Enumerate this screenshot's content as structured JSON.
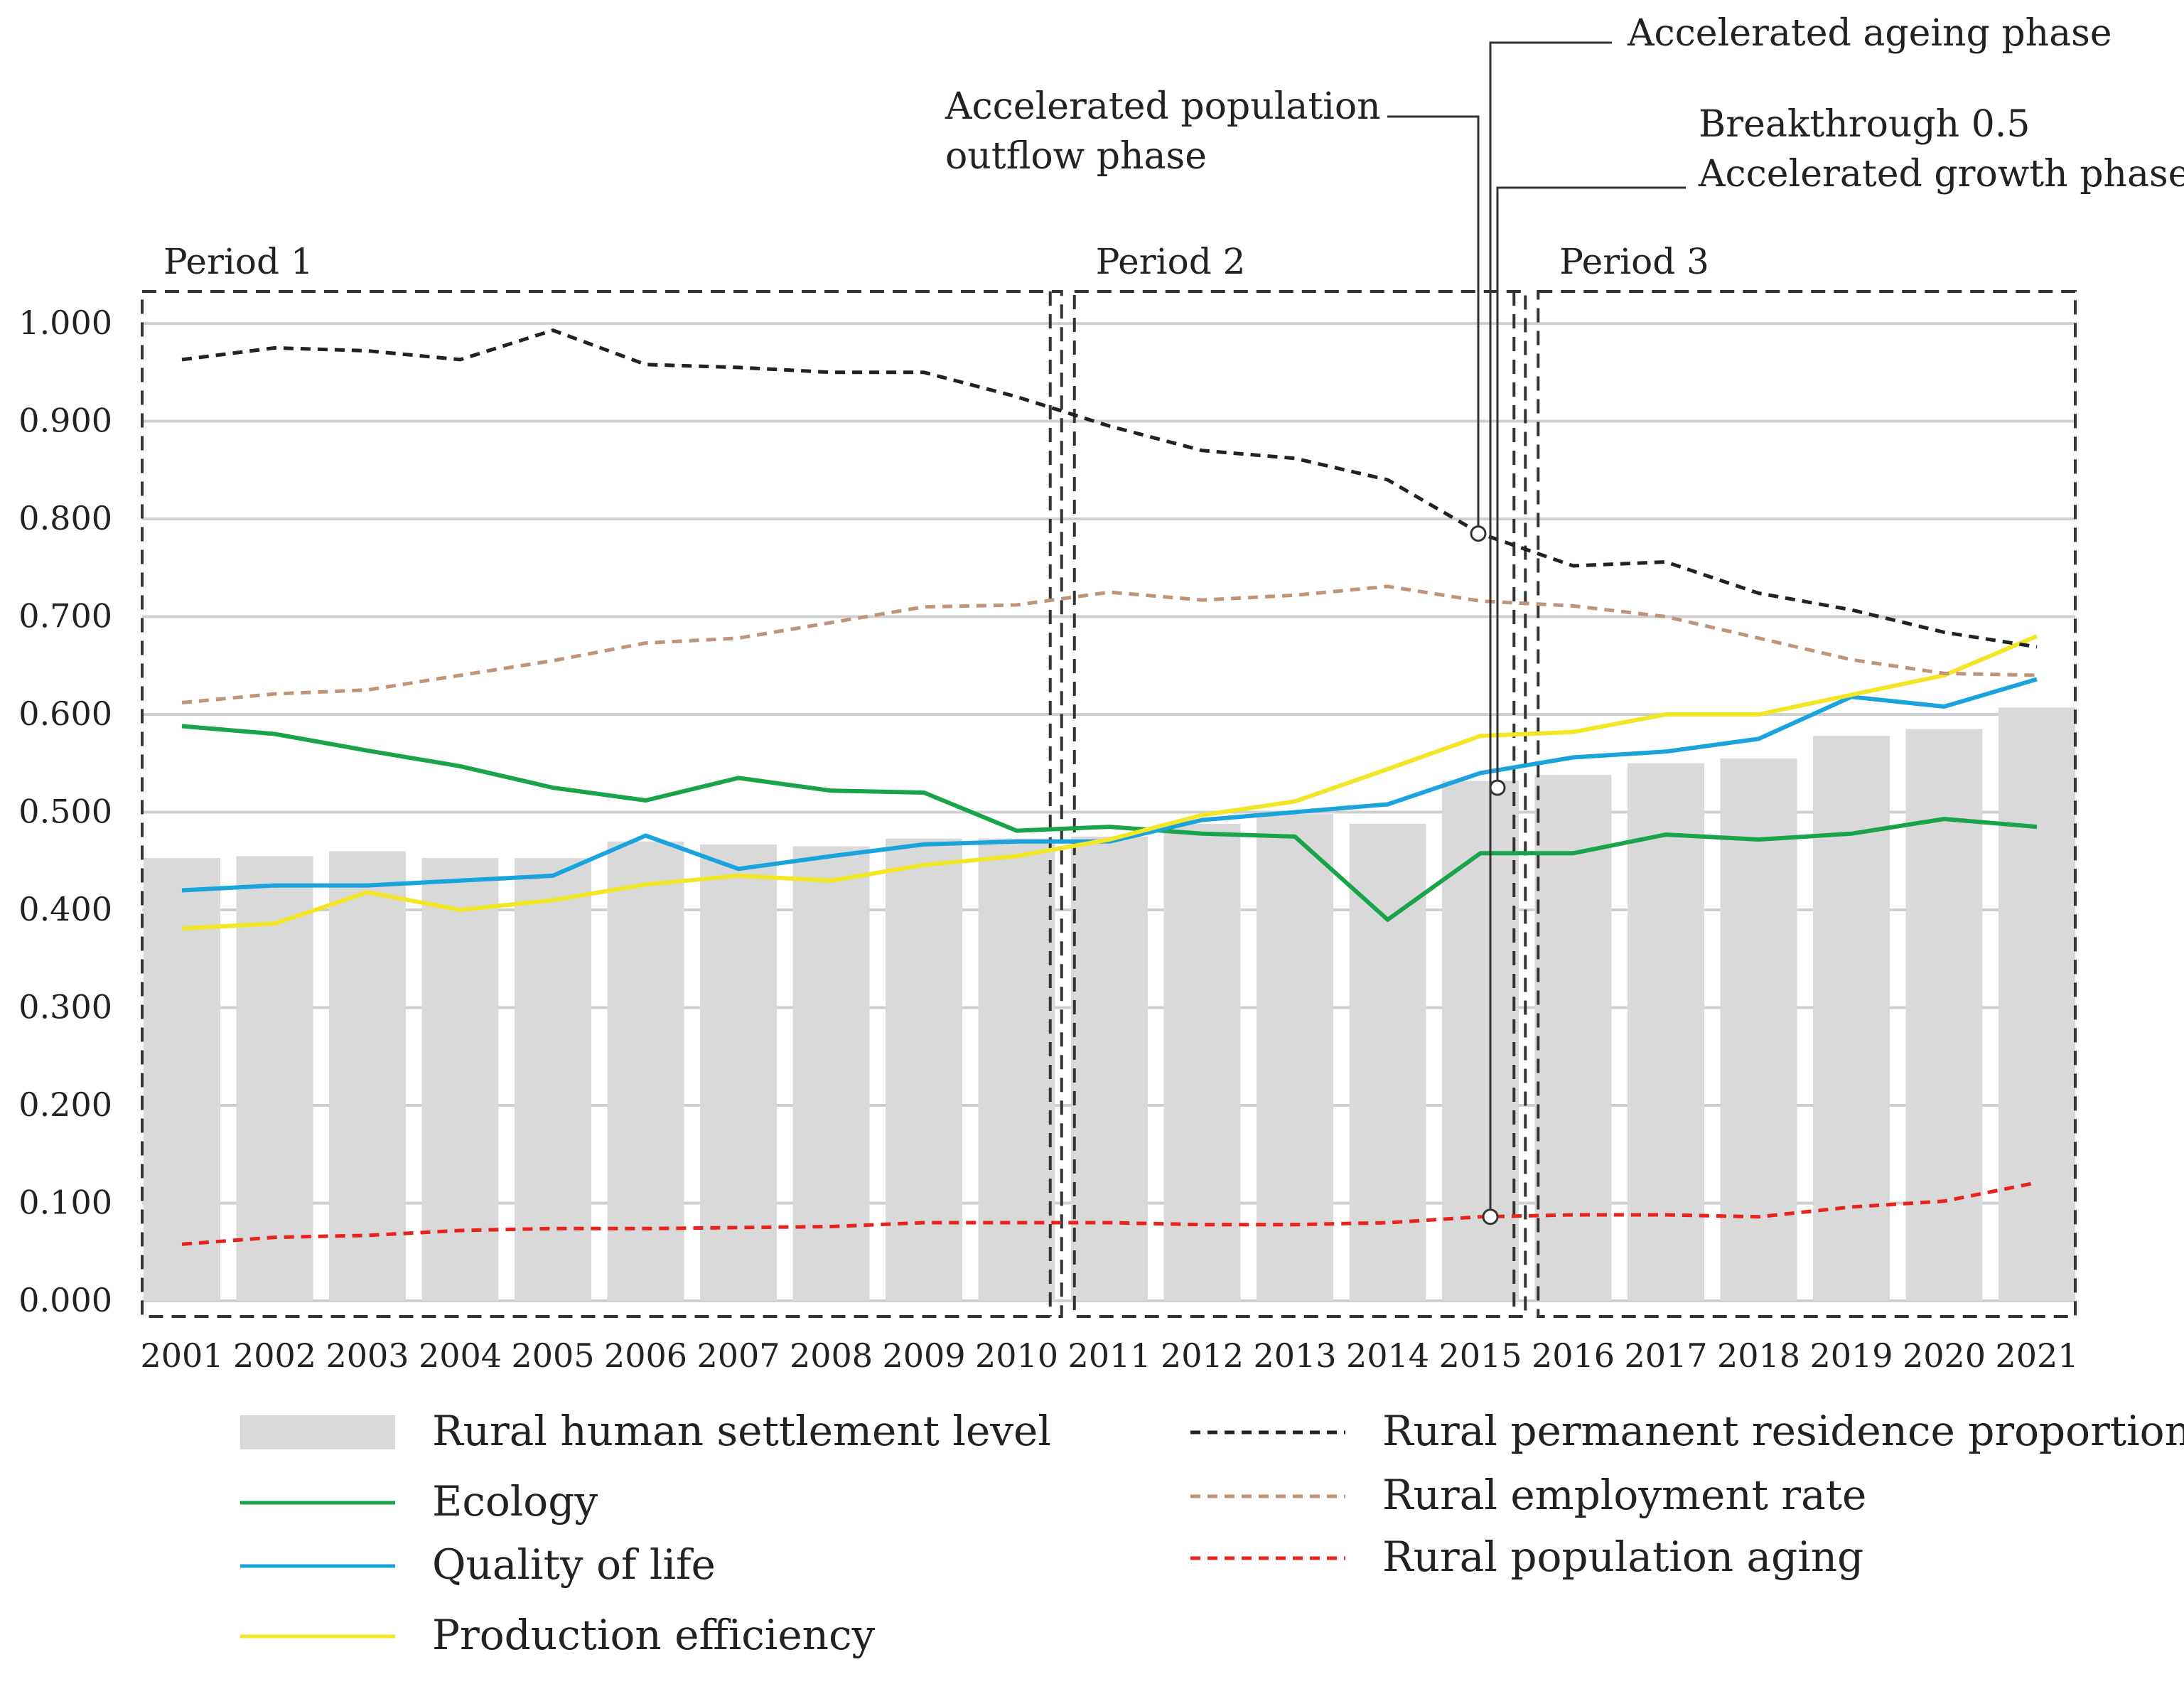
{
  "chart_data": {
    "type": "bar",
    "title": "",
    "xlabel": "",
    "ylabel": "",
    "ylim": [
      0,
      1
    ],
    "y_ticks": [
      "0.000",
      "0.100",
      "0.200",
      "0.300",
      "0.400",
      "0.500",
      "0.600",
      "0.700",
      "0.800",
      "0.900",
      "1.000"
    ],
    "categories": [
      "2001",
      "2002",
      "2003",
      "2004",
      "2005",
      "2006",
      "2007",
      "2008",
      "2009",
      "2010",
      "2011",
      "2012",
      "2013",
      "2014",
      "2015",
      "2016",
      "2017",
      "2018",
      "2019",
      "2020",
      "2021"
    ],
    "bars": {
      "name": "Rural human settlement level",
      "color": "#d9d9d9",
      "values": [
        0.453,
        0.455,
        0.46,
        0.453,
        0.453,
        0.47,
        0.467,
        0.465,
        0.473,
        0.473,
        0.475,
        0.488,
        0.498,
        0.488,
        0.532,
        0.538,
        0.55,
        0.555,
        0.578,
        0.585,
        0.607
      ]
    },
    "series": [
      {
        "name": "Ecology",
        "color": "#1aa44a",
        "style": "solid",
        "values": [
          0.588,
          0.58,
          0.563,
          0.547,
          0.525,
          0.512,
          0.535,
          0.522,
          0.52,
          0.481,
          0.485,
          0.478,
          0.475,
          0.39,
          0.458,
          0.458,
          0.477,
          0.472,
          0.478,
          0.493,
          0.485
        ]
      },
      {
        "name": "Quality of life",
        "color": "#1aa3dd",
        "style": "solid",
        "values": [
          0.42,
          0.425,
          0.425,
          0.43,
          0.435,
          0.476,
          0.442,
          0.455,
          0.467,
          0.47,
          0.47,
          0.492,
          0.5,
          0.508,
          0.54,
          0.556,
          0.562,
          0.575,
          0.618,
          0.608,
          0.636
        ]
      },
      {
        "name": "Production efficiency",
        "color": "#f2e627",
        "style": "solid",
        "values": [
          0.381,
          0.386,
          0.418,
          0.4,
          0.41,
          0.426,
          0.435,
          0.43,
          0.446,
          0.455,
          0.472,
          0.497,
          0.511,
          0.544,
          0.578,
          0.582,
          0.6,
          0.6,
          0.62,
          0.64,
          0.68
        ]
      },
      {
        "name": "Rural permanent residence proportion",
        "color": "#222222",
        "style": "dashed",
        "values": [
          0.963,
          0.975,
          0.972,
          0.963,
          0.993,
          0.958,
          0.955,
          0.95,
          0.95,
          0.925,
          0.895,
          0.87,
          0.862,
          0.84,
          0.785,
          0.752,
          0.756,
          0.724,
          0.707,
          0.684,
          0.669
        ]
      },
      {
        "name": "Rural employment rate",
        "color": "#c09478",
        "style": "dashed",
        "values": [
          0.612,
          0.621,
          0.625,
          0.64,
          0.655,
          0.673,
          0.678,
          0.694,
          0.71,
          0.712,
          0.725,
          0.717,
          0.722,
          0.731,
          0.716,
          0.711,
          0.7,
          0.678,
          0.656,
          0.642,
          0.64
        ]
      },
      {
        "name": "Rural population aging",
        "color": "#e8231e",
        "style": "dashed",
        "values": [
          0.058,
          0.065,
          0.067,
          0.072,
          0.074,
          0.074,
          0.075,
          0.076,
          0.08,
          0.08,
          0.08,
          0.078,
          0.078,
          0.08,
          0.086,
          0.088,
          0.088,
          0.086,
          0.096,
          0.102,
          0.121
        ]
      }
    ],
    "periods": [
      {
        "label": "Period 1",
        "from": "2001",
        "to": "2010"
      },
      {
        "label": "Period 2",
        "from": "2011",
        "to": "2015"
      },
      {
        "label": "Period 3",
        "from": "2016",
        "to": "2021"
      }
    ],
    "annotations": [
      {
        "lines": [
          "Accelerated ageing phase"
        ],
        "target_year": "2015",
        "target_value": 0.086
      },
      {
        "lines": [
          "Accelerated population",
          "outflow phase"
        ],
        "target_year": "2015",
        "target_value": 0.785
      },
      {
        "lines": [
          "Breakthrough 0.5",
          "Accelerated growth phase"
        ],
        "target_year": "2015",
        "target_value": 0.525
      }
    ],
    "legend_position": "bottom",
    "grid": true
  }
}
